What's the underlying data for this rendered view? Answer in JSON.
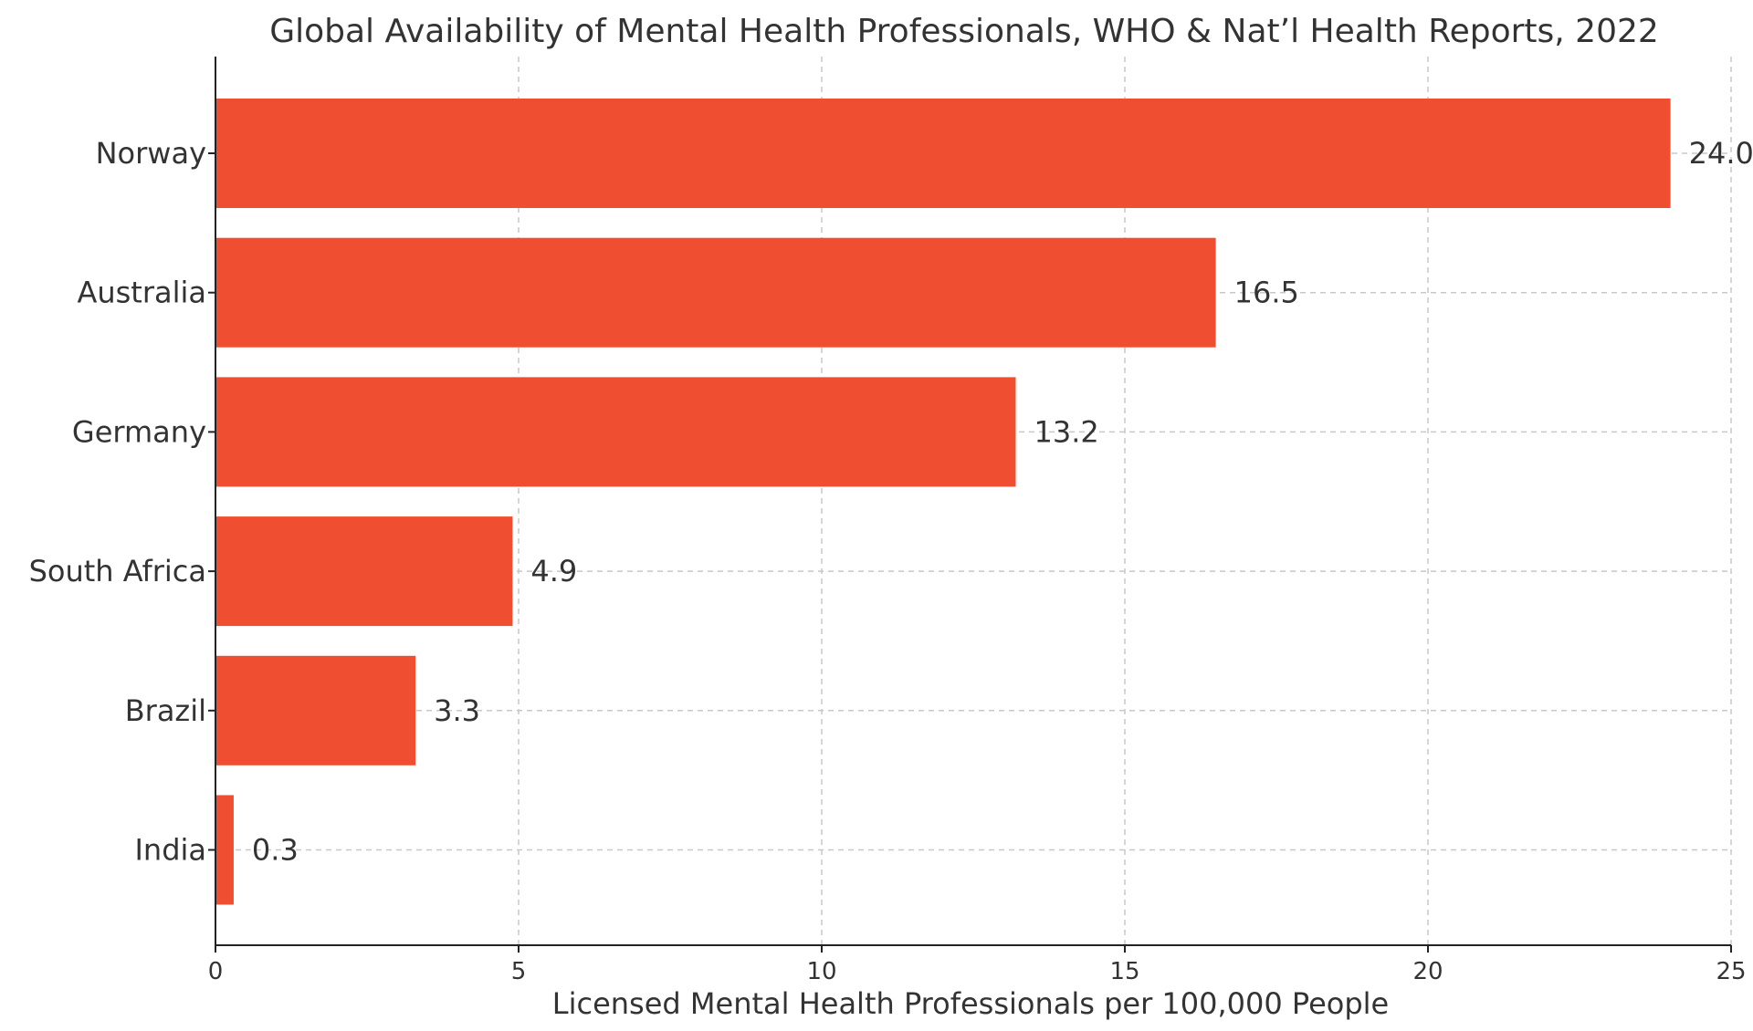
{
  "chart_data": {
    "type": "bar",
    "orientation": "horizontal",
    "title": "Global Availability of Mental Health Professionals, WHO & Nat’l Health Reports, 2022",
    "xlabel": "Licensed Mental Health Professionals per 100,000 People",
    "ylabel": "",
    "categories": [
      "Norway",
      "Australia",
      "Germany",
      "South Africa",
      "Brazil",
      "India"
    ],
    "values": [
      24.0,
      16.5,
      13.2,
      4.9,
      3.3,
      0.3
    ],
    "data_labels": [
      "24.0",
      "16.5",
      "13.2",
      "4.9",
      "3.3",
      "0.3"
    ],
    "xlim": [
      0,
      25
    ],
    "xticks": [
      0,
      5,
      10,
      15,
      20,
      25
    ],
    "xtick_labels": [
      "0",
      "5",
      "10",
      "15",
      "20",
      "25"
    ],
    "grid": true,
    "bar_color": "#f04e30"
  }
}
